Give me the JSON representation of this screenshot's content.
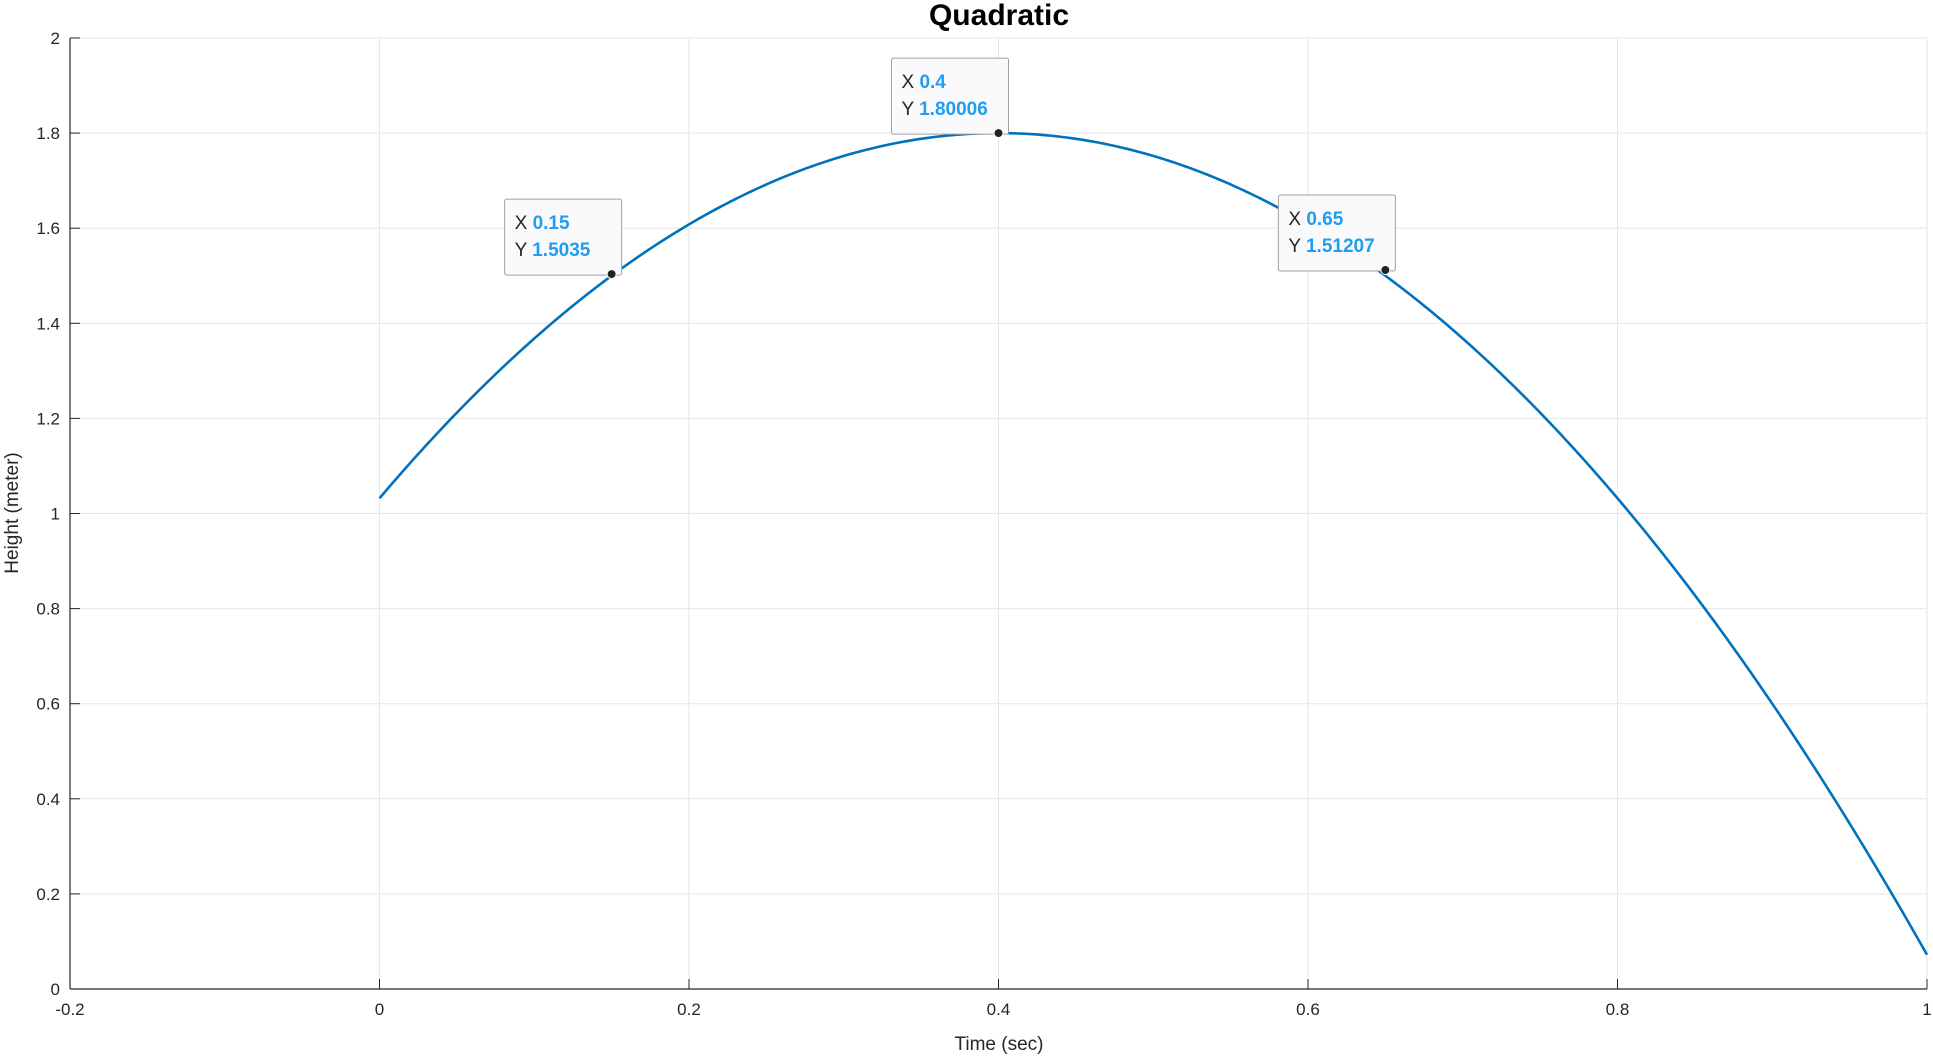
{
  "chart_data": {
    "type": "line",
    "title": "Quadratic",
    "xlabel": "Time (sec)",
    "ylabel": "Height (meter)",
    "xlim": [
      -0.2,
      1
    ],
    "ylim": [
      0,
      2
    ],
    "xticks": [
      "-0.2",
      "0",
      "0.2",
      "0.4",
      "0.6",
      "0.8",
      "1"
    ],
    "yticks": [
      "0",
      "0.2",
      "0.4",
      "0.6",
      "0.8",
      "1",
      "1.2",
      "1.4",
      "1.6",
      "1.8",
      "2"
    ],
    "grid": true,
    "series": [
      {
        "equation": {
          "a": -4.8,
          "peak_x": 0.4,
          "peak_y": 1.8
        },
        "x_range": [
          0,
          1
        ],
        "color": "#0072BD"
      }
    ],
    "datatips": [
      {
        "x_label": "X",
        "y_label": "Y",
        "x": 0.15,
        "y": 1.5035,
        "x_text": "0.15",
        "y_text": "1.5035"
      },
      {
        "x_label": "X",
        "y_label": "Y",
        "x": 0.4,
        "y": 1.80006,
        "x_text": "0.4",
        "y_text": "1.80006"
      },
      {
        "x_label": "X",
        "y_label": "Y",
        "x": 0.65,
        "y": 1.51207,
        "x_text": "0.65",
        "y_text": "1.51207"
      }
    ],
    "colors": {
      "line": "#0072BD",
      "tip_value": "#1F9DF2",
      "grid": "#E6E6E6",
      "axis": "#262626"
    }
  }
}
